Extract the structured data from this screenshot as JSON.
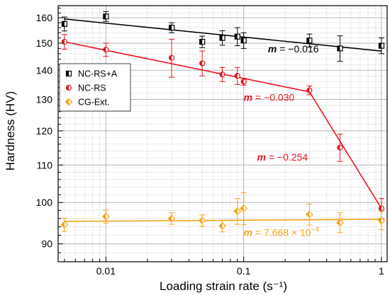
{
  "chart_data": {
    "type": "scatter",
    "title": "",
    "xlabel": "Loading strain rate (s⁻¹)",
    "ylabel": "Hardness (HV)",
    "xscale": "log",
    "yscale": "log",
    "xlim": [
      0.0045,
      1.1
    ],
    "ylim": [
      86,
      165
    ],
    "grid": true,
    "legend_position": "upper-left",
    "xticks": [
      {
        "value": 0.01,
        "label": "0.01"
      },
      {
        "value": 0.1,
        "label": "0.1"
      },
      {
        "value": 1,
        "label": "1"
      }
    ],
    "yticks": [
      {
        "value": 90,
        "label": "90"
      },
      {
        "value": 100,
        "label": "100"
      },
      {
        "value": 110,
        "label": "110"
      },
      {
        "value": 120,
        "label": "120"
      },
      {
        "value": 130,
        "label": "130"
      },
      {
        "value": 140,
        "label": "140"
      },
      {
        "value": 150,
        "label": "150"
      },
      {
        "value": 160,
        "label": "160"
      }
    ],
    "series": [
      {
        "name": "NC-RS+A",
        "color": "#000000",
        "marker": "square-half",
        "x": [
          0.005,
          0.01,
          0.03,
          0.05,
          0.07,
          0.09,
          0.1,
          0.3,
          0.5,
          1.0
        ],
        "y": [
          157.5,
          160.5,
          156.0,
          150.5,
          152.0,
          152.5,
          151.0,
          151.0,
          148.0,
          149.0
        ],
        "err": [
          2.8,
          2.0,
          2.0,
          2.2,
          2.8,
          3.5,
          3.0,
          2.5,
          4.8,
          3.0
        ],
        "fit": {
          "x": [
            0.005,
            1.0
          ],
          "y": [
            159.5,
            147.0
          ],
          "label_math": "m",
          "label_value": "= −0.016"
        }
      },
      {
        "name": "NC-RS",
        "color": "#e8141e",
        "marker": "circle-half",
        "x": [
          0.005,
          0.01,
          0.03,
          0.05,
          0.07,
          0.09,
          0.1,
          0.3,
          0.5,
          1.0
        ],
        "y": [
          150.5,
          147.5,
          144.5,
          142.5,
          138.5,
          138.0,
          136.0,
          133.0,
          115.0,
          98.5
        ],
        "err": [
          2.8,
          2.5,
          7.0,
          4.5,
          2.5,
          3.0,
          1.2,
          1.5,
          4.0,
          2.5
        ],
        "fit": {
          "x": [
            0.005,
            0.3,
            1.0
          ],
          "y": [
            150.5,
            132.5,
            98.5
          ],
          "labels": [
            {
              "math": "m",
              "value": "= −0.030"
            },
            {
              "math": "m",
              "value": "= −0.254"
            }
          ]
        }
      },
      {
        "name": "CG-Ext.",
        "color": "#f5a31a",
        "marker": "diamond-half",
        "x": [
          0.005,
          0.01,
          0.03,
          0.05,
          0.07,
          0.09,
          0.1,
          0.3,
          0.5,
          1.0
        ],
        "y": [
          94.5,
          96.5,
          96.0,
          95.5,
          94.2,
          97.8,
          98.5,
          97.0,
          95.0,
          95.5
        ],
        "err": [
          1.6,
          1.6,
          1.4,
          1.4,
          1.4,
          3.2,
          4.0,
          2.6,
          2.4,
          2.2
        ],
        "fit": {
          "x": [
            0.005,
            1.0
          ],
          "y": [
            95.3,
            95.8
          ],
          "label_math": "m",
          "label_value": "= 7.668 × 10",
          "label_exp": "−4"
        }
      }
    ]
  }
}
